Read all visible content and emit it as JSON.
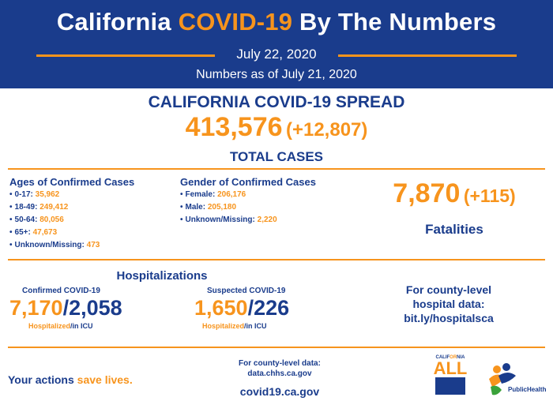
{
  "header": {
    "title_pre": "California ",
    "title_highlight": "COVID-19",
    "title_post": " By The Numbers",
    "date": "July 22, 2020",
    "as_of": "Numbers as of July 21, 2020"
  },
  "spread": {
    "heading": "CALIFORNIA COVID-19 SPREAD",
    "total": "413,576",
    "delta": "(+12,807)",
    "label": "TOTAL CASES"
  },
  "ages": {
    "title": "Ages of Confirmed Cases",
    "items": [
      {
        "label": "0-17:",
        "value": "35,962"
      },
      {
        "label": "18-49:",
        "value": "249,412"
      },
      {
        "label": "50-64:",
        "value": "80,056"
      },
      {
        "label": "65+:",
        "value": "47,673"
      },
      {
        "label": "Unknown/Missing:",
        "value": "473"
      }
    ]
  },
  "gender": {
    "title": "Gender of Confirmed Cases",
    "items": [
      {
        "label": "Female:",
        "value": "206,176"
      },
      {
        "label": "Male:",
        "value": "205,180"
      },
      {
        "label": "Unknown/Missing:",
        "value": "2,220"
      }
    ]
  },
  "fatalities": {
    "count": "7,870",
    "delta": "(+115)",
    "label": "Fatalities"
  },
  "hospitalizations": {
    "title": "Hospitalizations",
    "confirmed": {
      "caption": "Confirmed COVID-19",
      "hospitalized": "7,170",
      "icu": "2,058",
      "sub_hosp": "Hospitalized",
      "sub_icu": "in ICU"
    },
    "suspected": {
      "caption": "Suspected COVID-19",
      "hospitalized": "1,650",
      "icu": "226",
      "sub_hosp": "Hospitalized",
      "sub_icu": "in ICU"
    },
    "county": {
      "line1": "For county-level",
      "line2": "hospital data:",
      "link": "bit.ly/hospitalsca"
    }
  },
  "footer": {
    "actions_pre": "Your actions ",
    "actions_highlight": "save lives.",
    "county_line1": "For county-level data:",
    "county_line2": "data.chhs.ca.gov",
    "site": "covid19.ca.gov",
    "ca_logo_top_pre": "CALIF",
    "ca_logo_top_hl": "OR",
    "ca_logo_top_post": "NIA",
    "ca_logo_all": "ALL",
    "ph_logo_text": "PublicHealth"
  },
  "colors": {
    "navy": "#1a3c8c",
    "orange": "#f7941d"
  }
}
